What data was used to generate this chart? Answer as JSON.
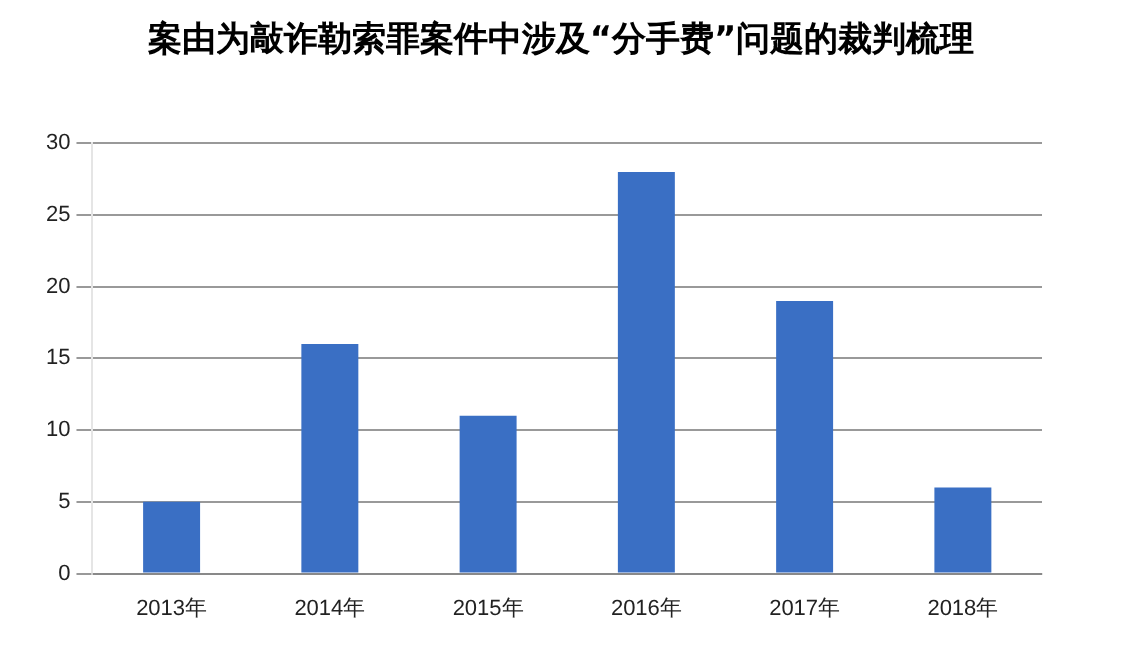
{
  "chart_data": {
    "type": "bar",
    "title": "案由为敲诈勒索罪案件中涉及“分手费”问题的裁判梳理",
    "categories": [
      "2013年",
      "2014年",
      "2015年",
      "2016年",
      "2017年",
      "2018年"
    ],
    "values": [
      5,
      16,
      11,
      28,
      19,
      6
    ],
    "color": "#3a6fc4",
    "ylim": [
      0,
      30
    ],
    "yticks": [
      0,
      5,
      10,
      15,
      20,
      25,
      30
    ],
    "grid": "y"
  }
}
